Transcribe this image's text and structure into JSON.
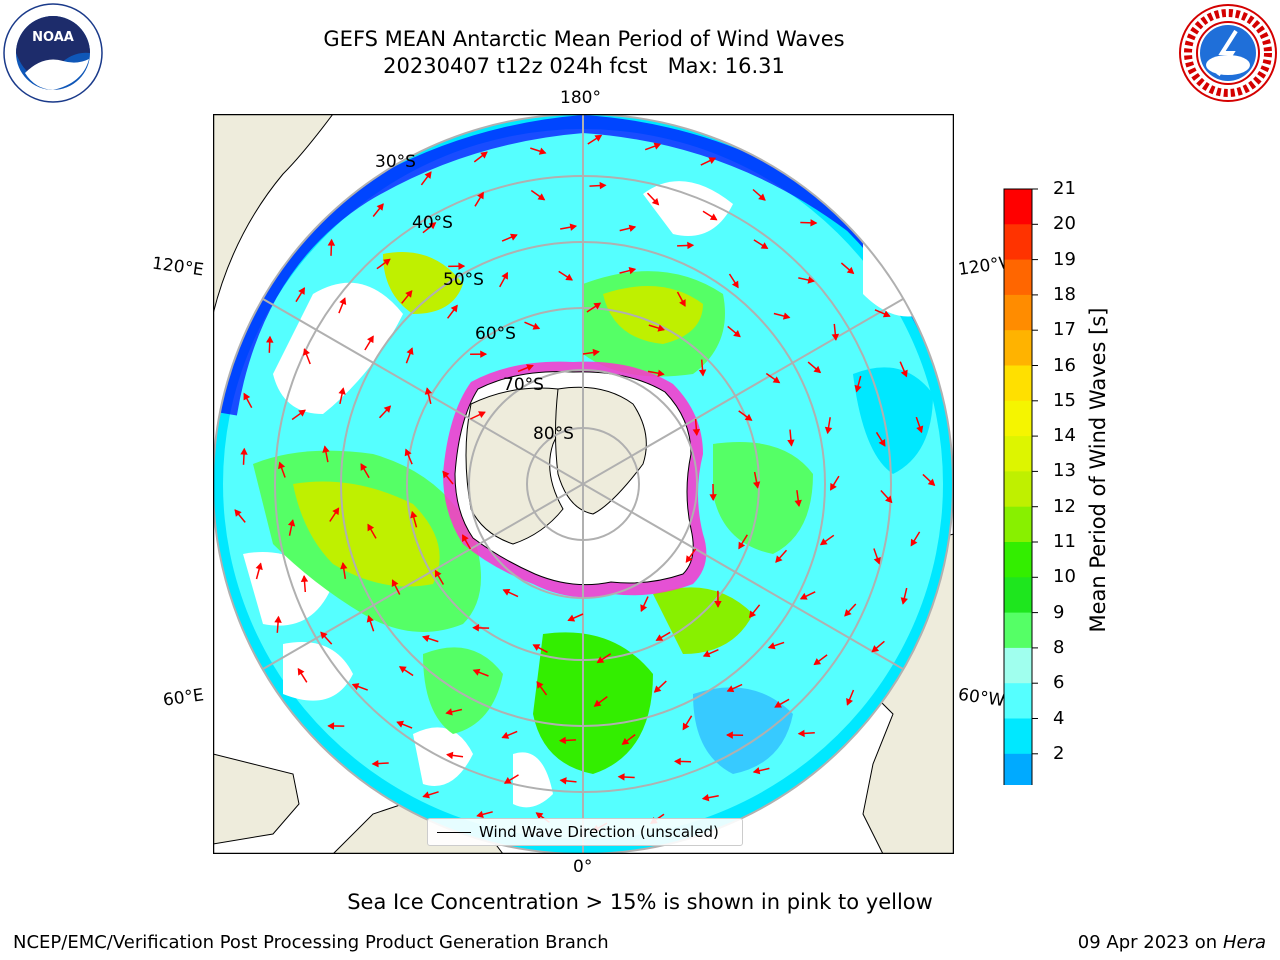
{
  "title": {
    "line1": "GEFS MEAN Antarctic Mean Period of Wind Waves",
    "line2": "20230407 t12z 024h fcst   Max: 16.31"
  },
  "logos": {
    "left": "noara-logo",
    "right": "national-weather-service-logo",
    "left_text": "NOAA",
    "left_ring_text": "NATIONAL OCEANIC AND ATMOSPHERIC ADMINISTRATION · U.S. DEPARTMENT OF COMMERCE",
    "right_ring_text": "NATIONAL WEATHER SERVICE"
  },
  "map": {
    "projection": "south-polar-stereographic",
    "longitude_labels": {
      "top": "180°",
      "bottom": "0°",
      "upper_left": "120°E",
      "lower_left": "60°E",
      "upper_right": "120°W",
      "lower_right": "60°W"
    },
    "latitude_labels": [
      "30°S",
      "40°S",
      "50°S",
      "60°S",
      "70°S",
      "80°S"
    ],
    "legend_entry": "Wind Wave Direction (unscaled)",
    "colors": {
      "land": "#eeecdc",
      "sea_ice_edge": "#ff33cc",
      "arrows": "#ff0000",
      "grid": "#b0b0b0"
    }
  },
  "colorbar": {
    "label": "Mean Period of Wind Waves [s]",
    "ticks": [
      "21",
      "20",
      "19",
      "18",
      "17",
      "16",
      "15",
      "14",
      "13",
      "12",
      "11",
      "10",
      "9",
      "8",
      "6",
      "4",
      "2"
    ],
    "colors": [
      "#ff0000",
      "#ff3300",
      "#ff6600",
      "#ff8c00",
      "#ffb300",
      "#ffe000",
      "#f5f500",
      "#ddf500",
      "#bff000",
      "#88f000",
      "#33ee00",
      "#1ee61e",
      "#55ff66",
      "#a0ffee",
      "#55ffff",
      "#00e8ff",
      "#00aaff",
      "#0066ff",
      "#0000ff"
    ]
  },
  "subtitle": "Sea Ice Concentration > 15% is shown in pink to yellow",
  "footer": {
    "left": "NCEP/EMC/Verification Post Processing Product Generation Branch",
    "right_date": "09 Apr 2023 on ",
    "right_machine": "Hera"
  }
}
